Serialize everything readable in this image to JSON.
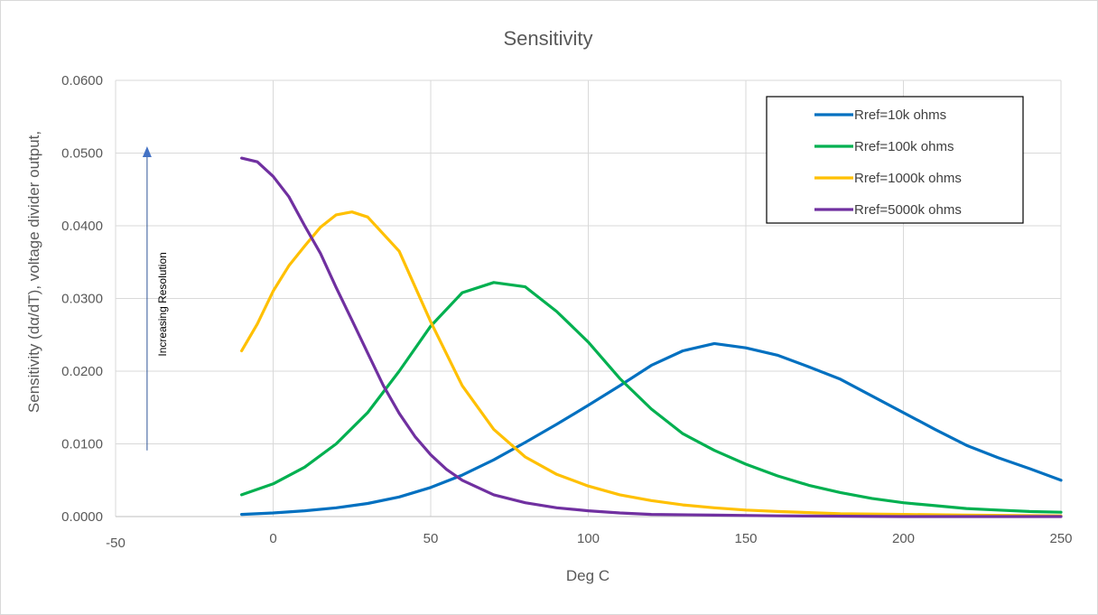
{
  "chart_data": {
    "type": "line",
    "title": "Sensitivity",
    "xlabel": "Deg C",
    "ylabel": "Sensitivity (dα/dT), voltage divider output,",
    "xlim": [
      -50,
      250
    ],
    "ylim": [
      0,
      0.06
    ],
    "x_ticks": [
      0,
      50,
      100,
      150,
      200,
      250
    ],
    "x_tick_labels": [
      "0",
      "50",
      "100",
      "150",
      "200",
      "250"
    ],
    "x_min_label": "-50",
    "y_ticks": [
      0,
      0.01,
      0.02,
      0.03,
      0.04,
      0.05,
      0.06
    ],
    "y_tick_labels": [
      "0.0000",
      "0.0100",
      "0.0200",
      "0.0300",
      "0.0400",
      "0.0500",
      "0.0600"
    ],
    "grid": true,
    "legend_position": "top-right",
    "annotation": {
      "text": "Increasing Resolution",
      "arrow_from": [
        -40,
        0.0091
      ],
      "arrow_to": [
        -40,
        0.0508
      ]
    },
    "series": [
      {
        "name": "Rref=10k ohms",
        "color": "#0070C0",
        "x": [
          -10,
          0,
          10,
          20,
          30,
          40,
          50,
          60,
          70,
          80,
          90,
          100,
          110,
          120,
          130,
          140,
          150,
          160,
          170,
          180,
          190,
          200,
          210,
          220,
          230,
          240,
          250
        ],
        "y": [
          0.0003,
          0.0005,
          0.0008,
          0.0012,
          0.0018,
          0.0027,
          0.004,
          0.0057,
          0.0078,
          0.0102,
          0.0127,
          0.0153,
          0.018,
          0.0208,
          0.0228,
          0.0238,
          0.0232,
          0.0222,
          0.0206,
          0.0189,
          0.0166,
          0.0143,
          0.012,
          0.0098,
          0.0081,
          0.0066,
          0.005
        ]
      },
      {
        "name": "Rref=100k ohms",
        "color": "#00B050",
        "x": [
          -10,
          0,
          10,
          20,
          30,
          40,
          50,
          60,
          70,
          80,
          90,
          100,
          110,
          120,
          130,
          140,
          150,
          160,
          170,
          180,
          190,
          200,
          210,
          220,
          230,
          240,
          250
        ],
        "y": [
          0.003,
          0.0045,
          0.0068,
          0.01,
          0.0143,
          0.02,
          0.0262,
          0.0308,
          0.0322,
          0.0316,
          0.0282,
          0.024,
          0.019,
          0.0148,
          0.0114,
          0.0091,
          0.0072,
          0.0056,
          0.0043,
          0.0033,
          0.0025,
          0.0019,
          0.0015,
          0.0011,
          0.0009,
          0.0007,
          0.0006
        ]
      },
      {
        "name": "Rref=1000k ohms",
        "color": "#FFC000",
        "x": [
          -10,
          -5,
          0,
          5,
          10,
          15,
          20,
          25,
          30,
          40,
          50,
          60,
          70,
          80,
          90,
          100,
          110,
          120,
          130,
          140,
          150,
          160,
          180,
          200,
          220,
          250
        ],
        "y": [
          0.0228,
          0.0265,
          0.031,
          0.0345,
          0.0372,
          0.0398,
          0.0415,
          0.0419,
          0.0412,
          0.0365,
          0.0268,
          0.018,
          0.012,
          0.0082,
          0.0058,
          0.0042,
          0.003,
          0.0022,
          0.0016,
          0.0012,
          0.0009,
          0.0007,
          0.0004,
          0.0003,
          0.0002,
          0.0001
        ]
      },
      {
        "name": "Rref=5000k ohms",
        "color": "#7030A0",
        "x": [
          -10,
          -5,
          0,
          5,
          10,
          15,
          20,
          25,
          30,
          35,
          40,
          45,
          50,
          55,
          60,
          70,
          80,
          90,
          100,
          110,
          120,
          140,
          160,
          200,
          250
        ],
        "y": [
          0.0493,
          0.0488,
          0.0468,
          0.044,
          0.04,
          0.0362,
          0.0315,
          0.027,
          0.0225,
          0.018,
          0.0142,
          0.011,
          0.0085,
          0.0065,
          0.005,
          0.003,
          0.0019,
          0.0012,
          0.0008,
          0.0005,
          0.0003,
          0.0002,
          0.0001,
          0.0,
          0.0
        ]
      }
    ]
  }
}
